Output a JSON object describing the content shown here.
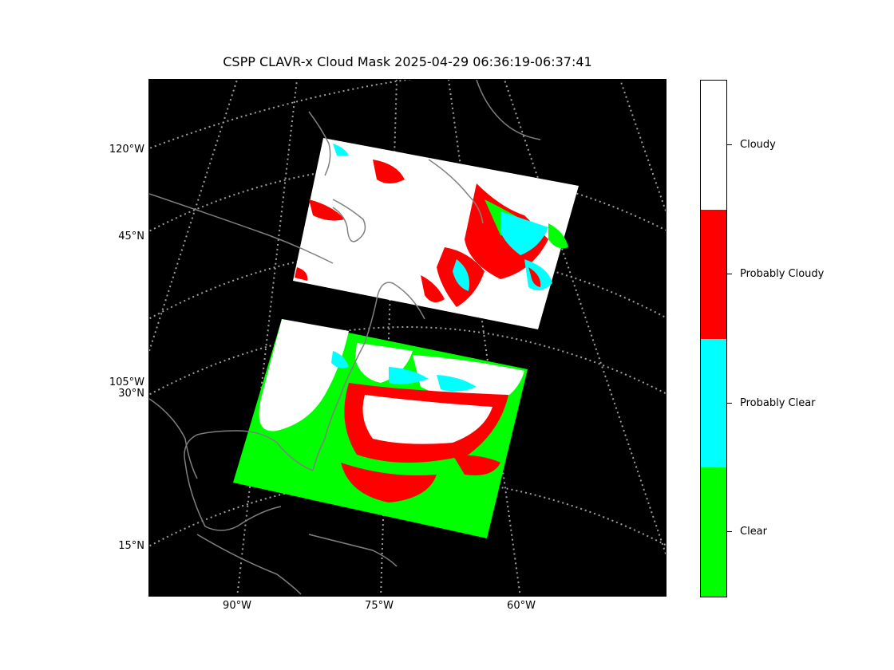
{
  "title": "CSPP CLAVR-x Cloud Mask 2025-04-29 06:36:19-06:37:41",
  "lat_labels": [
    {
      "text": "120°W"
    },
    {
      "text": "45°N"
    },
    {
      "text": "105°W"
    },
    {
      "text": "30°N"
    },
    {
      "text": "15°N"
    }
  ],
  "lon_labels": [
    {
      "text": "90°W"
    },
    {
      "text": "75°W"
    },
    {
      "text": "60°W"
    }
  ],
  "legend": {
    "categories": [
      {
        "name": "Cloudy",
        "color": "#ffffff"
      },
      {
        "name": "Probably Cloudy",
        "color": "#ff0000"
      },
      {
        "name": "Probably Clear",
        "color": "#00ffff"
      },
      {
        "name": "Clear",
        "color": "#00ff00"
      }
    ]
  },
  "colors": {
    "background": "#000000",
    "coastline": "#808080",
    "gridline": "#a0a0a0"
  }
}
